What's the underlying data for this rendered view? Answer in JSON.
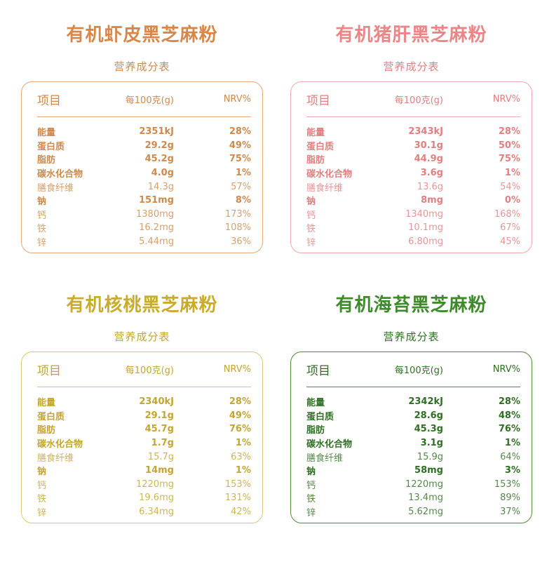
{
  "panels": [
    {
      "title": "有机虾皮黑芝麻粉",
      "subtitle": "营养成分表",
      "colors": {
        "title": "#d8874a",
        "accent": "#cc8a4e",
        "border": "#e3a978"
      },
      "header": {
        "item": "项目",
        "per": "每100克(g)",
        "nrv": "NRV%"
      },
      "rows": [
        {
          "name": "能量",
          "value": "2351kJ",
          "nrv": "28%",
          "bold": true
        },
        {
          "name": "蛋白质",
          "value": "29.2g",
          "nrv": "49%",
          "bold": true
        },
        {
          "name": "脂肪",
          "value": "45.2g",
          "nrv": "75%",
          "bold": true
        },
        {
          "name": "碳水化合物",
          "value": "4.0g",
          "nrv": "1%",
          "bold": true
        },
        {
          "name": "膳食纤维",
          "value": "14.3g",
          "nrv": "57%",
          "bold": false
        },
        {
          "name": "钠",
          "value": "151mg",
          "nrv": "8%",
          "bold": true
        },
        {
          "name": "钙",
          "value": "1380mg",
          "nrv": "173%",
          "bold": false
        },
        {
          "name": "铁",
          "value": "16.2mg",
          "nrv": "108%",
          "bold": false
        },
        {
          "name": "锌",
          "value": "5.44mg",
          "nrv": "36%",
          "bold": false
        }
      ]
    },
    {
      "title": "有机猪肝黑芝麻粉",
      "subtitle": "营养成分表",
      "colors": {
        "title": "#ea8686",
        "accent": "#e07f80",
        "border": "#efa9a9"
      },
      "header": {
        "item": "项目",
        "per": "每100克(g)",
        "nrv": "NRV%"
      },
      "rows": [
        {
          "name": "能量",
          "value": "2343kJ",
          "nrv": "28%",
          "bold": true
        },
        {
          "name": "蛋白质",
          "value": "30.1g",
          "nrv": "50%",
          "bold": true
        },
        {
          "name": "脂肪",
          "value": "44.9g",
          "nrv": "75%",
          "bold": true
        },
        {
          "name": "碳水化合物",
          "value": "3.6g",
          "nrv": "1%",
          "bold": true
        },
        {
          "name": "膳食纤维",
          "value": "13.6g",
          "nrv": "54%",
          "bold": false
        },
        {
          "name": "钠",
          "value": "8mg",
          "nrv": "0%",
          "bold": true
        },
        {
          "name": "钙",
          "value": "1340mg",
          "nrv": "168%",
          "bold": false
        },
        {
          "name": "铁",
          "value": "10.1mg",
          "nrv": "67%",
          "bold": false
        },
        {
          "name": "锌",
          "value": "6.80mg",
          "nrv": "45%",
          "bold": false
        }
      ]
    },
    {
      "title": "有机核桃黑芝麻粉",
      "subtitle": "营养成分表",
      "colors": {
        "title": "#c9ac2c",
        "accent": "#c2a533",
        "border": "#dcc779"
      },
      "header": {
        "item": "项目",
        "per": "每100克(g)",
        "nrv": "NRV%"
      },
      "rows": [
        {
          "name": "能量",
          "value": "2340kJ",
          "nrv": "28%",
          "bold": true
        },
        {
          "name": "蛋白质",
          "value": "29.1g",
          "nrv": "49%",
          "bold": true
        },
        {
          "name": "脂肪",
          "value": "45.7g",
          "nrv": "76%",
          "bold": true
        },
        {
          "name": "碳水化合物",
          "value": "1.7g",
          "nrv": "1%",
          "bold": true
        },
        {
          "name": "膳食纤维",
          "value": "15.7g",
          "nrv": "63%",
          "bold": false
        },
        {
          "name": "钠",
          "value": "14mg",
          "nrv": "1%",
          "bold": true
        },
        {
          "name": "钙",
          "value": "1220mg",
          "nrv": "153%",
          "bold": false
        },
        {
          "name": "铁",
          "value": "19.6mg",
          "nrv": "131%",
          "bold": false
        },
        {
          "name": "锌",
          "value": "6.34mg",
          "nrv": "42%",
          "bold": false
        }
      ]
    },
    {
      "title": "有机海苔黑芝麻粉",
      "subtitle": "营养成分表",
      "colors": {
        "title": "#3f8a2a",
        "accent": "#2f6e24",
        "border": "#4f8a3c"
      },
      "header": {
        "item": "项目",
        "per": "每100克(g)",
        "nrv": "NRV%"
      },
      "rows": [
        {
          "name": "能量",
          "value": "2342kJ",
          "nrv": "28%",
          "bold": true
        },
        {
          "name": "蛋白质",
          "value": "28.6g",
          "nrv": "48%",
          "bold": true
        },
        {
          "name": "脂肪",
          "value": "45.3g",
          "nrv": "76%",
          "bold": true
        },
        {
          "name": "碳水化合物",
          "value": "3.1g",
          "nrv": "1%",
          "bold": true
        },
        {
          "name": "膳食纤维",
          "value": "15.9g",
          "nrv": "64%",
          "bold": false
        },
        {
          "name": "钠",
          "value": "58mg",
          "nrv": "3%",
          "bold": true
        },
        {
          "name": "钙",
          "value": "1220mg",
          "nrv": "153%",
          "bold": false
        },
        {
          "name": "铁",
          "value": "13.4mg",
          "nrv": "89%",
          "bold": false
        },
        {
          "name": "锌",
          "value": "5.62mg",
          "nrv": "37%",
          "bold": false
        }
      ]
    }
  ]
}
